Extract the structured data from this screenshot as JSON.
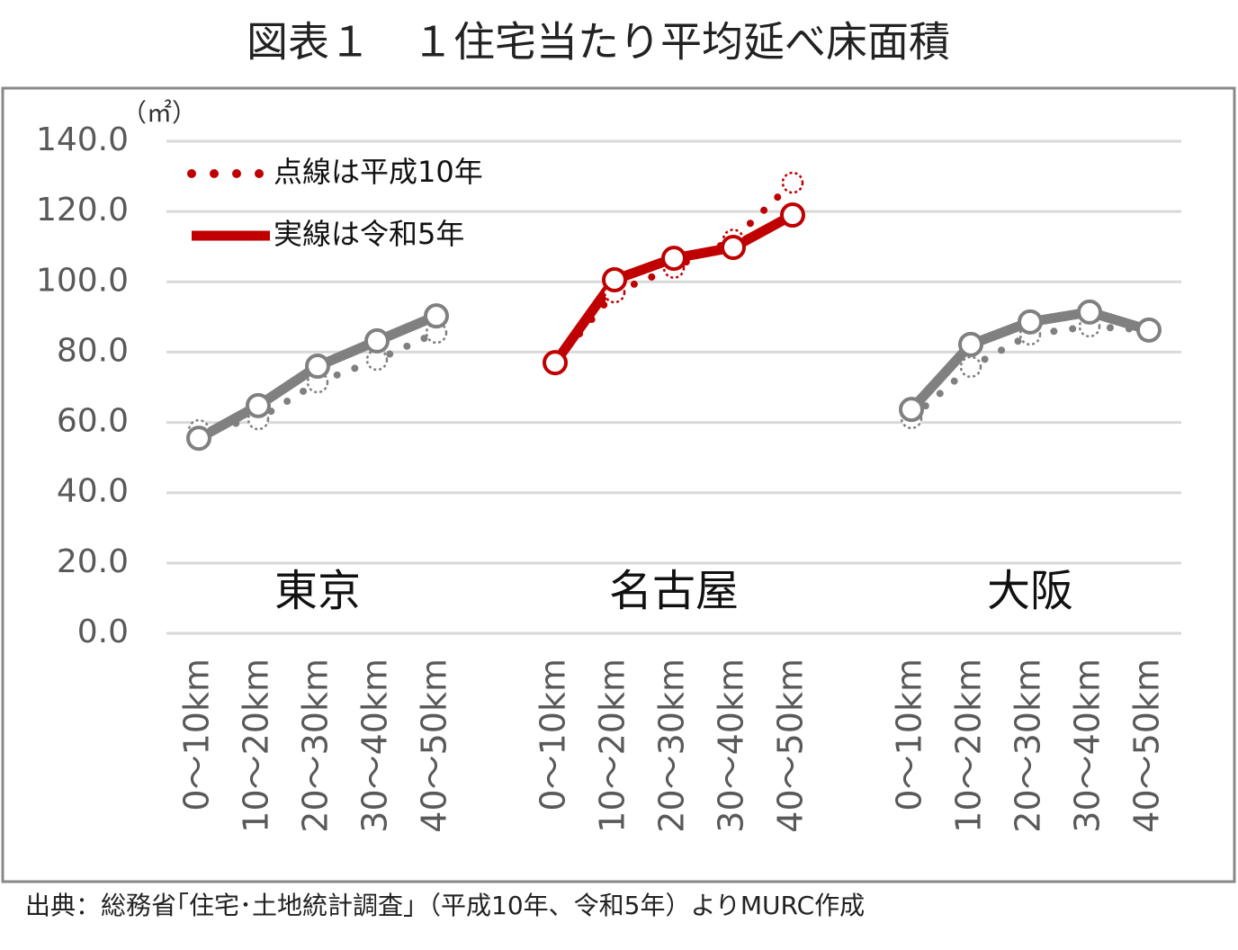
{
  "chart_data": {
    "type": "line",
    "title": "図表１　１住宅当たり平均延べ床面積",
    "y_unit": "（㎡）",
    "source": "出典：総務省｢住宅･土地統計調査｣（平成10年、令和5年）よりMURC作成",
    "categories": [
      "0～10km",
      "10～20km",
      "20～30km",
      "30～40km",
      "40～50km",
      null,
      "0～10km",
      "10～20km",
      "20～30km",
      "30～40km",
      "40～50km",
      null,
      "0～10km",
      "10～20km",
      "20～30km",
      "30～40km",
      "40～50km"
    ],
    "groups": [
      {
        "label": "東京",
        "color": "#808080"
      },
      {
        "label": "名古屋",
        "color": "#c00000"
      },
      {
        "label": "大阪",
        "color": "#808080"
      }
    ],
    "series": [
      {
        "name": "点線は平成10年",
        "style": "dotted",
        "color": "#c00000",
        "values": [
          57.8,
          60.9,
          71.4,
          77.8,
          85.5,
          null,
          77.0,
          97.0,
          104.0,
          112.0,
          128.2,
          null,
          61.2,
          75.8,
          85.0,
          87.3,
          86.3
        ]
      },
      {
        "name": "実線は令和5年",
        "style": "solid",
        "color": "#c00000",
        "values": [
          55.5,
          64.8,
          76.0,
          83.2,
          90.3,
          null,
          77.0,
          100.6,
          106.7,
          109.8,
          119.0,
          null,
          63.7,
          82.2,
          88.6,
          91.4,
          86.3
        ]
      }
    ],
    "ylim": [
      0,
      140
    ],
    "yticks": [
      {
        "value": 0,
        "label": "0.0"
      },
      {
        "value": 20,
        "label": "20.0"
      },
      {
        "value": 40,
        "label": "40.0"
      },
      {
        "value": 60,
        "label": "60.0"
      },
      {
        "value": 80,
        "label": "80.0"
      },
      {
        "value": 100,
        "label": "100.0"
      },
      {
        "value": 120,
        "label": "120.0"
      },
      {
        "value": 140,
        "label": "140.0"
      }
    ],
    "grid": true
  }
}
